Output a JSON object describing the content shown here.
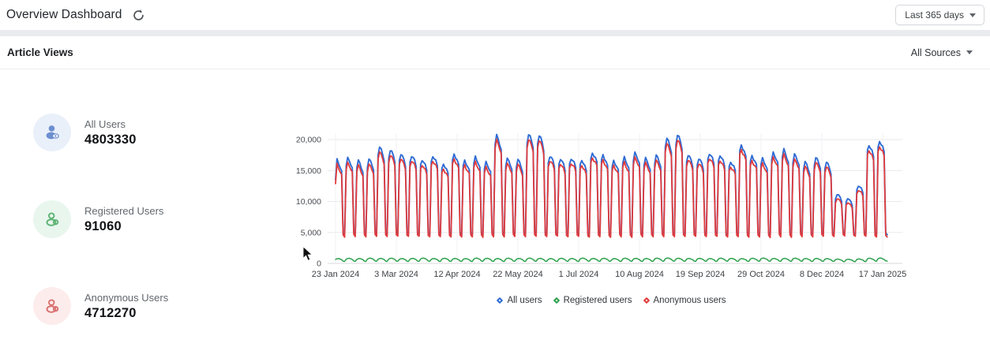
{
  "header": {
    "title": "Overview Dashboard",
    "range_button": {
      "label": "Last 365 days"
    }
  },
  "section": {
    "title": "Article Views",
    "source_filter": {
      "label": "All Sources"
    }
  },
  "stats": [
    {
      "label": "All Users",
      "value": "4803330",
      "icon": "all-users-icon",
      "icon_color": "#6d8fd0",
      "icon_bg": "#e9f0fa"
    },
    {
      "label": "Registered Users",
      "value": "91060",
      "icon": "registered-user-icon",
      "icon_color": "#5eb474",
      "icon_bg": "#e8f6ee"
    },
    {
      "label": "Anonymous Users",
      "value": "4712270",
      "icon": "anonymous-user-icon",
      "icon_color": "#d97070",
      "icon_bg": "#fdecec"
    }
  ],
  "chart_data": {
    "type": "line",
    "title": "Article Views",
    "x_tick_labels": [
      "23 Jan 2024",
      "3 Mar 2024",
      "12 Apr 2024",
      "22 May 2024",
      "1 Jul 2024",
      "10 Aug 2024",
      "19 Sep 2024",
      "29 Oct 2024",
      "8 Dec 2024",
      "17 Jan 2025"
    ],
    "x_tick_days": [
      0,
      40,
      80,
      120,
      160,
      200,
      240,
      280,
      320,
      360
    ],
    "y_ticks": [
      0,
      5000,
      10000,
      15000,
      20000
    ],
    "y_tick_labels": [
      "0",
      "5,000",
      "10,000",
      "15,000",
      "20,000"
    ],
    "ylim": [
      0,
      21500
    ],
    "grid": true,
    "legend_position": "bottom",
    "pattern": "daily article views over 365 days with weekly seasonality: weekday plateaus, sharp weekend troughs, a late-December holiday dip and January recovery",
    "weekly_trough": 4650,
    "weekday_shape": [
      0.94,
      1.0,
      0.975,
      0.945,
      0.9
    ],
    "weekend_shape": [
      1.07,
      1.0
    ],
    "registered_day_shape": [
      1.0,
      1.1,
      1.14,
      1.06,
      0.98,
      0.6,
      0.52
    ],
    "series": [
      {
        "name": "All users",
        "color": "#2f6bd4",
        "weekly_peaks": [
          16600,
          17000,
          16500,
          16800,
          18800,
          18300,
          17800,
          17400,
          16900,
          17300,
          16200,
          17500,
          16700,
          17000,
          16400,
          20400,
          17000,
          16600,
          21000,
          20600,
          17500,
          16900,
          17100,
          16700,
          17900,
          17500,
          16500,
          17100,
          17700,
          17000,
          17300,
          20300,
          20600,
          17700,
          16900,
          18000,
          17400,
          16600,
          19000,
          17500,
          16800,
          17900,
          18200,
          17600,
          16300,
          17100,
          16400,
          11200,
          10600,
          12600,
          19300,
          19700
        ]
      },
      {
        "name": "Registered users",
        "color": "#2fa14d",
        "weekly_values": [
          640,
          680,
          650,
          700,
          660,
          690,
          640,
          670,
          700,
          650,
          680,
          660,
          640,
          700,
          680,
          650,
          690,
          660,
          700,
          670,
          640,
          680,
          650,
          700,
          660,
          680,
          640,
          690,
          670,
          650,
          700,
          720,
          690,
          660,
          680,
          650,
          700,
          670,
          640,
          690,
          710,
          660,
          680,
          700,
          650,
          670,
          640,
          580,
          560,
          600,
          700,
          720
        ]
      },
      {
        "name": "Anonymous users",
        "color": "#e23b3b",
        "derived": "all_minus_registered"
      }
    ],
    "legend": [
      {
        "label": "All users",
        "color": "#2f6bd4"
      },
      {
        "label": "Registered users",
        "color": "#2fa14d"
      },
      {
        "label": "Anonymous users",
        "color": "#e23b3b"
      }
    ]
  }
}
